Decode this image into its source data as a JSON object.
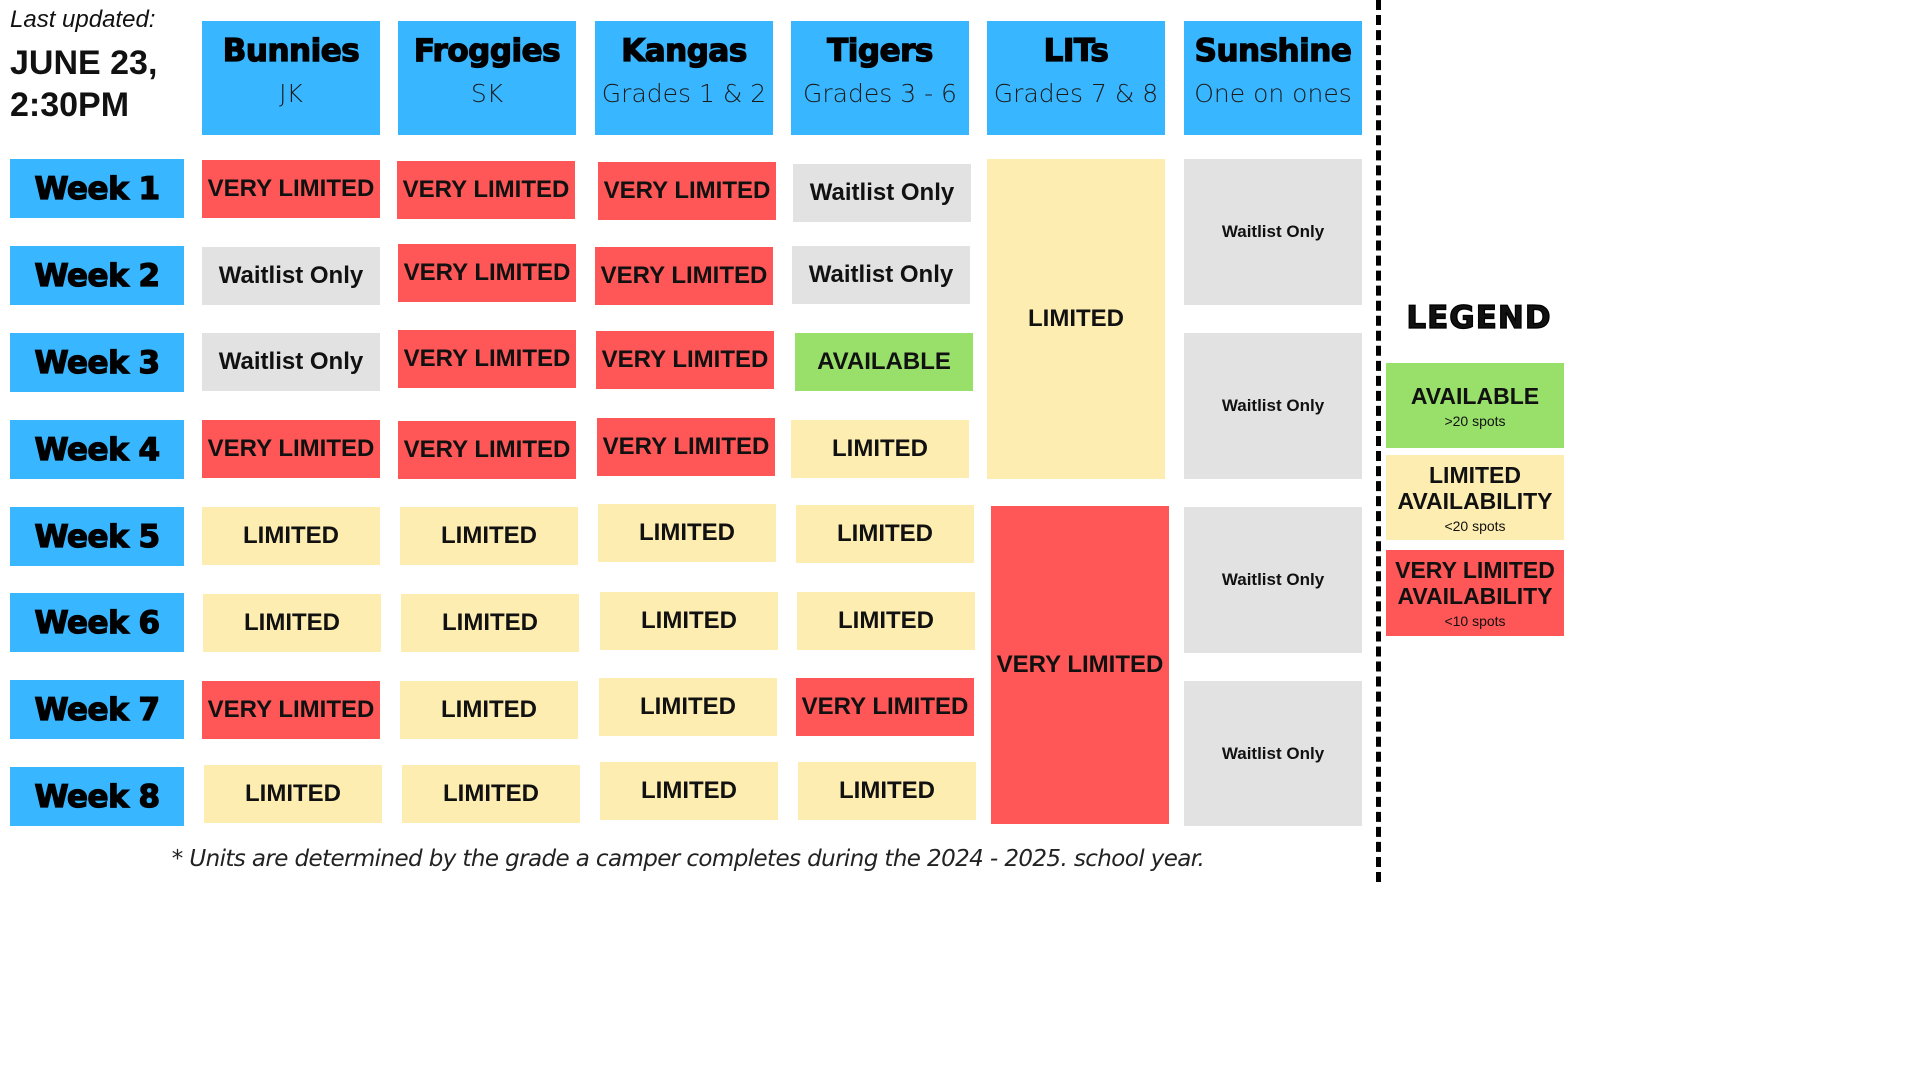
{
  "last_updated": {
    "label": "Last updated:",
    "value": "JUNE 23, 2:30PM"
  },
  "units": [
    {
      "name": "Bunnies",
      "sub": "JK"
    },
    {
      "name": "Froggies",
      "sub": "SK"
    },
    {
      "name": "Kangas",
      "sub": "Grades 1 & 2"
    },
    {
      "name": "Tigers",
      "sub": "Grades 3 - 6"
    },
    {
      "name": "LITs",
      "sub": "Grades 7 & 8"
    },
    {
      "name": "Sunshine",
      "sub": "One on ones"
    }
  ],
  "weeks": [
    "Week 1",
    "Week 2",
    "Week 3",
    "Week 4",
    "Week 5",
    "Week 6",
    "Week 7",
    "Week 8"
  ],
  "grid": {
    "bunnies": [
      "VERY LIMITED",
      "Waitlist Only",
      "Waitlist Only",
      "VERY LIMITED",
      "LIMITED",
      "LIMITED",
      "VERY LIMITED",
      "LIMITED"
    ],
    "froggies": [
      "VERY LIMITED",
      "VERY LIMITED",
      "VERY LIMITED",
      "VERY LIMITED",
      "LIMITED",
      "LIMITED",
      "LIMITED",
      "LIMITED"
    ],
    "kangas": [
      "VERY LIMITED",
      "VERY LIMITED",
      "VERY LIMITED",
      "VERY LIMITED",
      "LIMITED",
      "LIMITED",
      "LIMITED",
      "LIMITED"
    ],
    "tigers": [
      "Waitlist Only",
      "Waitlist Only",
      "AVAILABLE",
      "LIMITED",
      "LIMITED",
      "LIMITED",
      "VERY LIMITED",
      "LIMITED"
    ],
    "lits_blocks": [
      {
        "weeks": "1-4",
        "status": "LIMITED"
      },
      {
        "weeks": "5-8",
        "status": "VERY LIMITED"
      }
    ],
    "sunshine_blocks": [
      {
        "weeks": "1-2",
        "status": "Waitlist Only"
      },
      {
        "weeks": "3-4",
        "status": "Waitlist Only"
      },
      {
        "weeks": "5-6",
        "status": "Waitlist Only"
      },
      {
        "weeks": "7-8",
        "status": "Waitlist Only"
      }
    ]
  },
  "legend": {
    "title": "LEGEND",
    "items": [
      {
        "label": "AVAILABLE",
        "sub": ">20 spots",
        "color": "#98e06a"
      },
      {
        "label": "LIMITED AVAILABILITY",
        "sub": "<20 spots",
        "color": "#fdedb0"
      },
      {
        "label": "VERY LIMITED AVAILABILITY",
        "sub": "<10 spots",
        "color": "#ff5757"
      }
    ]
  },
  "footnote": "* Units are determined by the grade a camper completes during the 2024 - 2025. school year.",
  "colors": {
    "header_blue": "#38b6ff",
    "very_limited": "#ff5757",
    "limited": "#fdedb0",
    "waitlist": "#e2e2e2",
    "available": "#98e06a"
  }
}
